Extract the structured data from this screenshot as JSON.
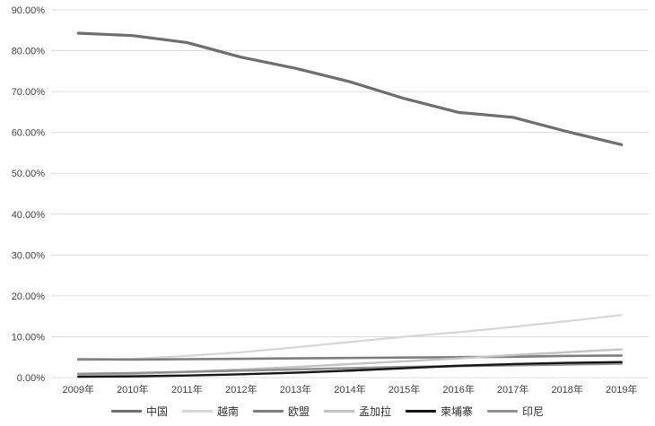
{
  "colors": {
    "background": "#ffffff",
    "gridline": "#dcdcdc",
    "axis_text": "#3f3f3f",
    "legend_text": "#303030"
  },
  "chart_data": {
    "type": "line",
    "title": "",
    "xlabel": "",
    "ylabel": "",
    "grid": true,
    "legend_position": "bottom",
    "categories": [
      "2009年",
      "2010年",
      "2011年",
      "2012年",
      "2013年",
      "2014年",
      "2015年",
      "2016年",
      "2017年",
      "2018年",
      "2019年"
    ],
    "y_axis": {
      "min": 0,
      "max": 90,
      "step": 10,
      "format": "0.00%",
      "tick_labels": [
        "0.00%",
        "10.00%",
        "20.00%",
        "30.00%",
        "40.00%",
        "50.00%",
        "60.00%",
        "70.00%",
        "80.00%",
        "90.00%"
      ]
    },
    "series": [
      {
        "id": "china",
        "name": "中国",
        "color": "#6e6e6e",
        "width": 3.2,
        "z": 6,
        "values": [
          84.3,
          83.7,
          82.0,
          78.4,
          75.7,
          72.4,
          68.3,
          64.9,
          63.7,
          60.2,
          57.0
        ]
      },
      {
        "id": "vietnam",
        "name": "越南",
        "color": "#d6d6d6",
        "width": 2.2,
        "z": 1,
        "values": [
          4.2,
          4.6,
          5.3,
          6.2,
          7.4,
          8.7,
          10.0,
          11.1,
          12.4,
          13.8,
          15.3
        ]
      },
      {
        "id": "eu",
        "name": "欧盟",
        "color": "#7d7d7d",
        "width": 2.6,
        "z": 2,
        "values": [
          4.5,
          4.4,
          4.5,
          4.6,
          4.7,
          4.8,
          4.9,
          5.0,
          5.1,
          5.3,
          5.4
        ]
      },
      {
        "id": "bangladesh",
        "name": "孟加拉",
        "color": "#c3c3c3",
        "width": 2.4,
        "z": 3,
        "values": [
          0.6,
          0.9,
          1.4,
          2.0,
          2.6,
          3.3,
          4.0,
          4.7,
          5.5,
          6.2,
          6.9
        ]
      },
      {
        "id": "cambodia",
        "name": "柬埔寨",
        "color": "#151515",
        "width": 2.4,
        "z": 5,
        "values": [
          0.2,
          0.3,
          0.5,
          0.8,
          1.2,
          1.7,
          2.3,
          2.9,
          3.3,
          3.6,
          3.8
        ]
      },
      {
        "id": "indonesia",
        "name": "印尼",
        "color": "#909090",
        "width": 2.6,
        "z": 4,
        "values": [
          0.9,
          1.1,
          1.4,
          1.7,
          2.0,
          2.3,
          2.6,
          2.8,
          3.0,
          3.2,
          3.4
        ]
      }
    ]
  }
}
